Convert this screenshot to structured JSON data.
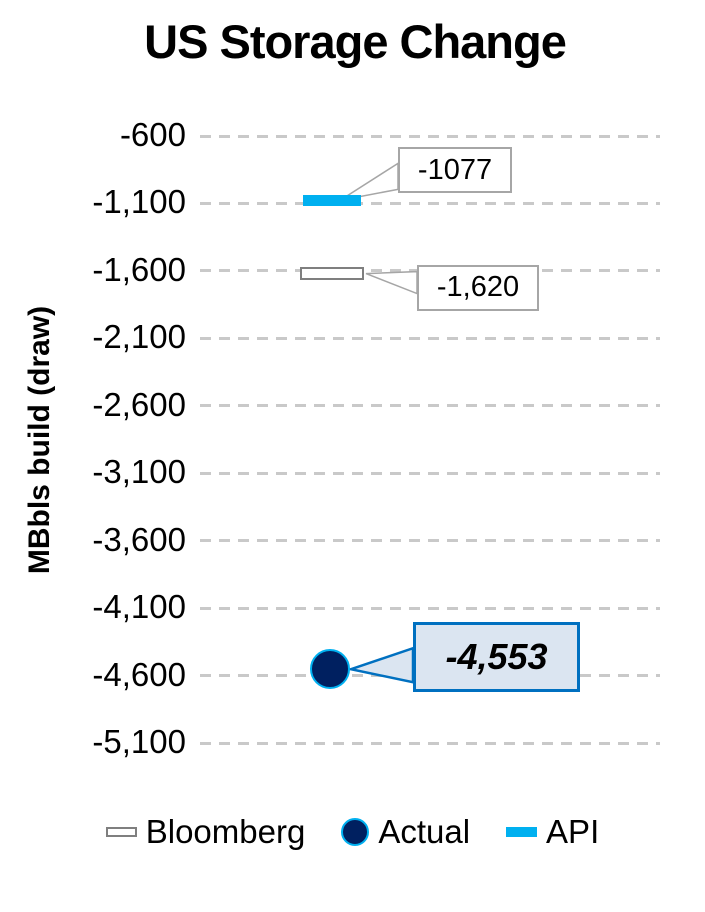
{
  "chart_data": {
    "type": "scatter",
    "title": "US Storage Change",
    "ylabel": "MBbls build (draw)",
    "ylim": [
      -5100,
      -600
    ],
    "grid": "dashed-horizontal",
    "legend_position": "bottom",
    "yticks": [
      {
        "value": -600,
        "label": "-600"
      },
      {
        "value": -1100,
        "label": "-1,100"
      },
      {
        "value": -1600,
        "label": "-1,600"
      },
      {
        "value": -2100,
        "label": "-2,100"
      },
      {
        "value": -2600,
        "label": "-2,600"
      },
      {
        "value": -3100,
        "label": "-3,100"
      },
      {
        "value": -3600,
        "label": "-3,600"
      },
      {
        "value": -4100,
        "label": "-4,100"
      },
      {
        "value": -4600,
        "label": "-4,600"
      },
      {
        "value": -5100,
        "label": "-5,100"
      }
    ],
    "series": [
      {
        "name": "Bloomberg",
        "value": -1620,
        "data_label": "-1,620",
        "marker": "dash-outline",
        "fill": "#ffffff",
        "stroke": "#7f7f7f"
      },
      {
        "name": "Actual",
        "value": -4553,
        "data_label": "-4,553",
        "marker": "circle",
        "fill": "#002060",
        "stroke": "#00b0f0"
      },
      {
        "name": "API",
        "value": -1077,
        "data_label": "-1077",
        "marker": "dash",
        "fill": "#00b0f0",
        "stroke": "#00b0f0"
      }
    ],
    "colors": {
      "gridline": "#c9c9c9",
      "callout_fill": "#ffffff",
      "callout_border": "#a6a6a6",
      "actual_callout_fill": "#dbe5f1",
      "actual_callout_border": "#0070c0"
    }
  }
}
